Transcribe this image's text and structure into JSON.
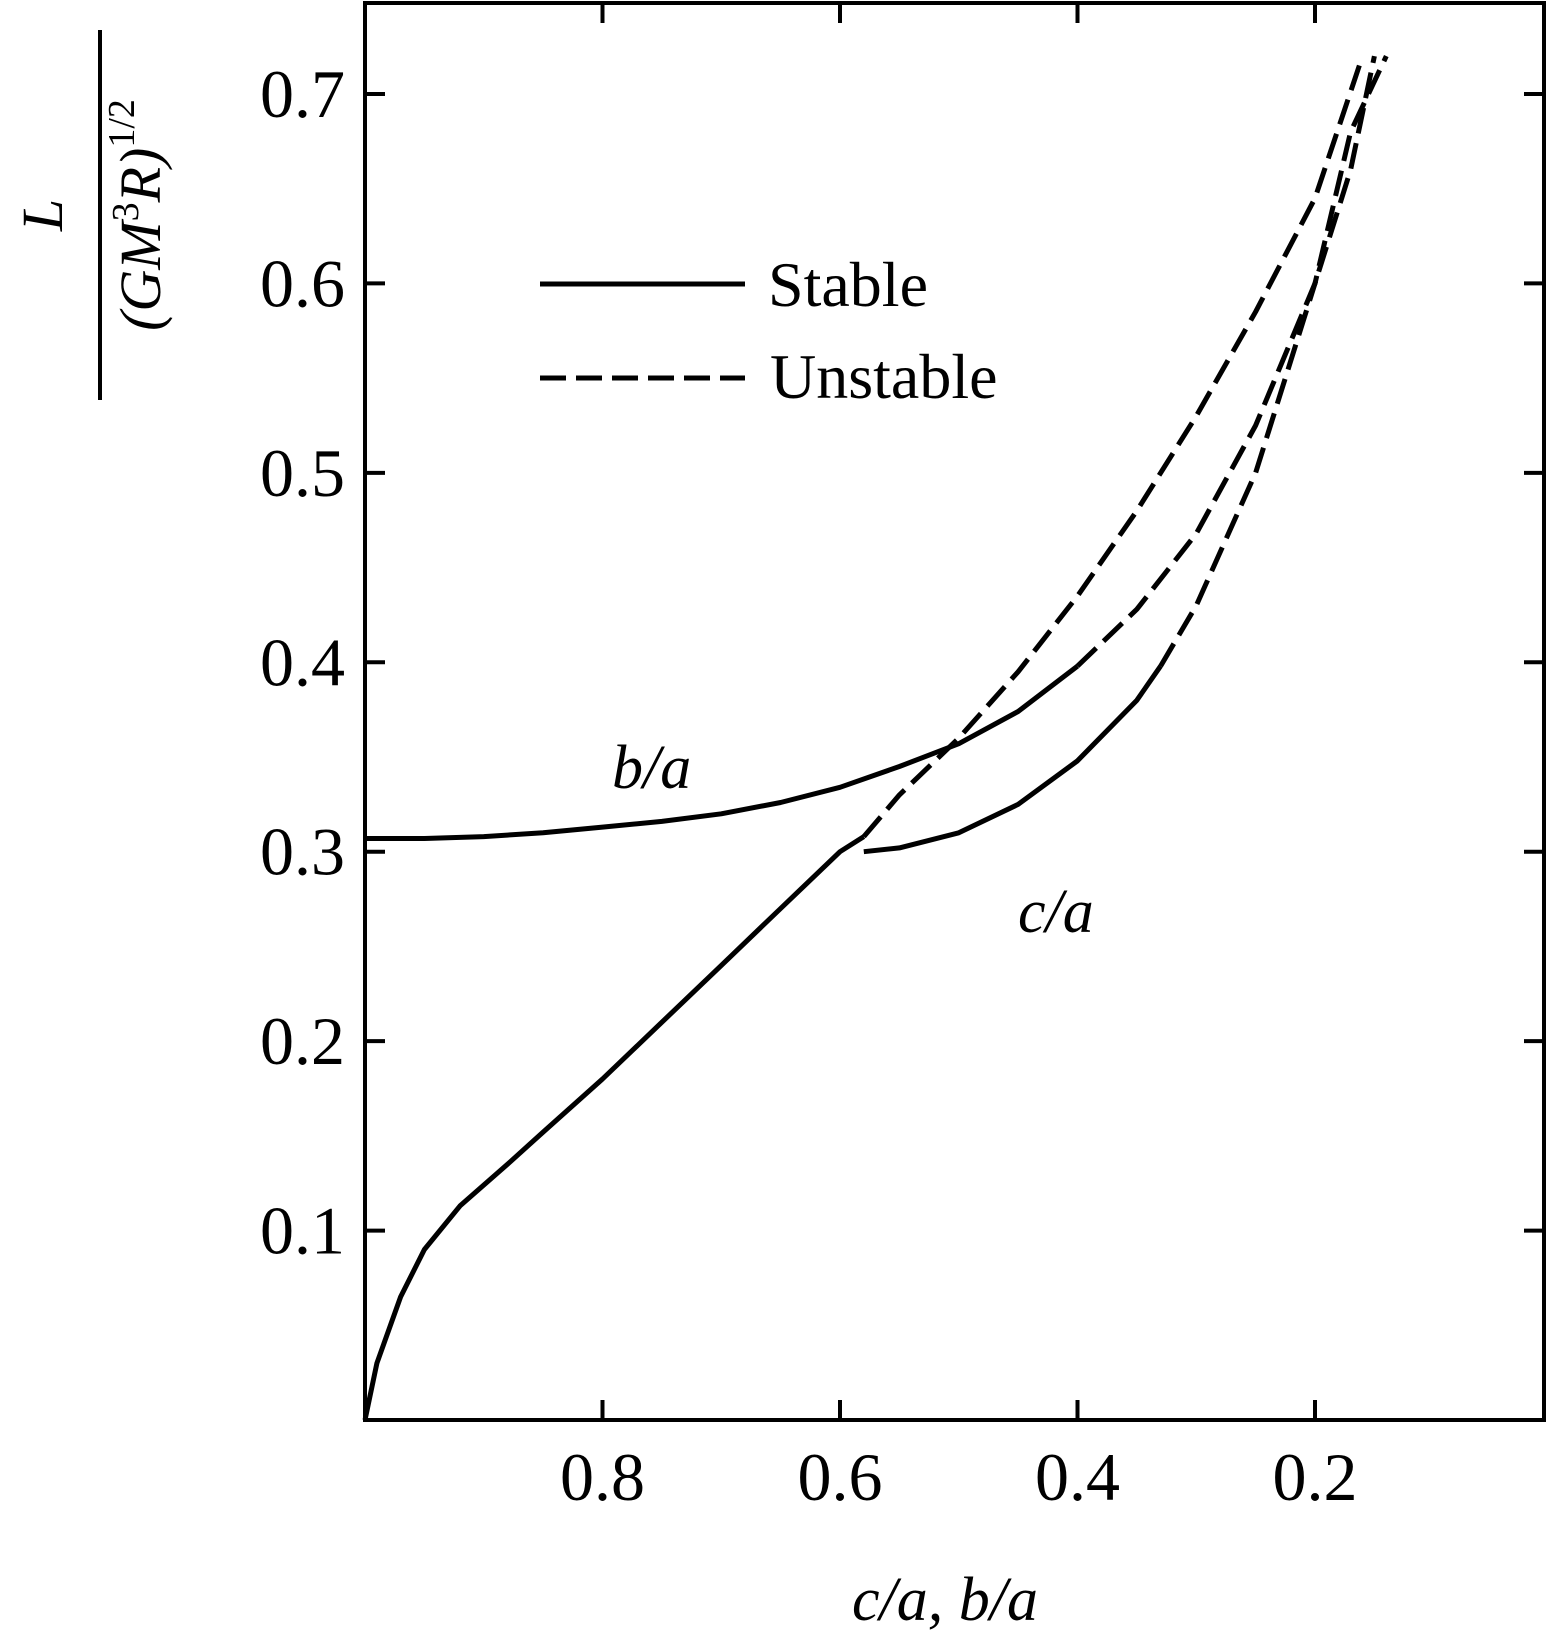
{
  "chart_data": {
    "type": "line",
    "xlabel": "c/a, b/a",
    "ylabel": {
      "numerator": "L",
      "denominator": "(GM",
      "denominator_sup": "3",
      "denominator_rest": "R)",
      "denominator_exp": "1/2"
    },
    "xlim": [
      1.0,
      0.0
    ],
    "ylim": [
      0.0,
      0.75
    ],
    "x_reversed": true,
    "xticks": [
      0.8,
      0.6,
      0.4,
      0.2
    ],
    "xtick_labels": [
      "0.8",
      "0.6",
      "0.4",
      "0.2"
    ],
    "yticks": [
      0.1,
      0.2,
      0.3,
      0.4,
      0.5,
      0.6,
      0.7
    ],
    "ytick_labels": [
      "0.1",
      "0.2",
      "0.3",
      "0.4",
      "0.5",
      "0.6",
      "0.7"
    ],
    "grid": false,
    "legend": {
      "placement": "upper-left",
      "entries": [
        {
          "label": "Stable",
          "style": "solid"
        },
        {
          "label": "Unstable",
          "style": "dashed"
        }
      ]
    },
    "annotations": [
      {
        "text": "b/a",
        "x": 0.77,
        "y": 0.34
      },
      {
        "text": "c/a",
        "x": 0.4,
        "y": 0.26
      }
    ],
    "series": [
      {
        "label": "b/a",
        "style": "solid",
        "points": [
          [
            1.0,
            0.307
          ],
          [
            0.95,
            0.307
          ],
          [
            0.9,
            0.308
          ],
          [
            0.85,
            0.31
          ],
          [
            0.8,
            0.313
          ],
          [
            0.75,
            0.316
          ],
          [
            0.7,
            0.32
          ],
          [
            0.65,
            0.326
          ],
          [
            0.6,
            0.334
          ],
          [
            0.55,
            0.345
          ],
          [
            0.5,
            0.357
          ],
          [
            0.45,
            0.374
          ],
          [
            0.4,
            0.398
          ]
        ]
      },
      {
        "label": "b/a",
        "style": "dashed",
        "points": [
          [
            0.4,
            0.398
          ],
          [
            0.35,
            0.428
          ],
          [
            0.3,
            0.468
          ],
          [
            0.25,
            0.525
          ],
          [
            0.2,
            0.6
          ],
          [
            0.17,
            0.66
          ],
          [
            0.15,
            0.72
          ]
        ]
      },
      {
        "label": "c/a",
        "style": "solid",
        "points": [
          [
            1.0,
            0.0
          ],
          [
            0.99,
            0.03
          ],
          [
            0.97,
            0.065
          ],
          [
            0.95,
            0.09
          ],
          [
            0.92,
            0.113
          ],
          [
            0.88,
            0.135
          ],
          [
            0.85,
            0.152
          ],
          [
            0.8,
            0.18
          ],
          [
            0.75,
            0.21
          ],
          [
            0.7,
            0.24
          ],
          [
            0.65,
            0.27
          ],
          [
            0.6,
            0.3
          ],
          [
            0.58,
            0.308
          ]
        ]
      },
      {
        "label": "c/a",
        "style": "dashed",
        "points": [
          [
            0.58,
            0.308
          ],
          [
            0.55,
            0.33
          ],
          [
            0.5,
            0.36
          ],
          [
            0.45,
            0.395
          ],
          [
            0.4,
            0.435
          ],
          [
            0.35,
            0.48
          ],
          [
            0.3,
            0.53
          ],
          [
            0.25,
            0.585
          ],
          [
            0.2,
            0.645
          ],
          [
            0.16,
            0.72
          ]
        ]
      },
      {
        "label": "c/a",
        "style": "solid",
        "points": [
          [
            0.58,
            0.3
          ],
          [
            0.55,
            0.302
          ],
          [
            0.5,
            0.31
          ],
          [
            0.45,
            0.325
          ],
          [
            0.4,
            0.348
          ],
          [
            0.35,
            0.38
          ],
          [
            0.33,
            0.398
          ]
        ]
      },
      {
        "label": "c/a",
        "style": "dashed",
        "points": [
          [
            0.33,
            0.398
          ],
          [
            0.3,
            0.43
          ],
          [
            0.25,
            0.5
          ],
          [
            0.2,
            0.6
          ],
          [
            0.17,
            0.68
          ],
          [
            0.14,
            0.72
          ]
        ]
      }
    ]
  }
}
